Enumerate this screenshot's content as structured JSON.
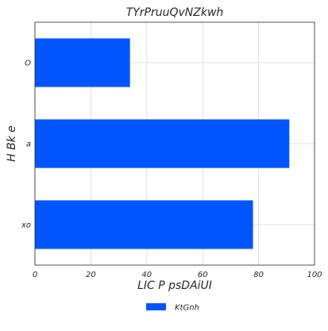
{
  "chart_data": {
    "type": "bar",
    "orientation": "horizontal",
    "title": "TYrPruuQvNZkwh",
    "xlabel": "LIC P psDAiUI",
    "ylabel": "H Bk e",
    "categories": [
      "O",
      "a",
      "xo"
    ],
    "series": [
      {
        "name": "KtGnh",
        "values": [
          34,
          91,
          78
        ],
        "color": "#0055ff"
      }
    ],
    "xlim": [
      0,
      100
    ],
    "xticks": [
      "0",
      "20",
      "40",
      "60",
      "80",
      "100"
    ],
    "grid": true,
    "legend_position": "bottom-center"
  },
  "colors": {
    "background": "#ffffff",
    "grid": "#d9d9d9",
    "axis": "#262626"
  }
}
